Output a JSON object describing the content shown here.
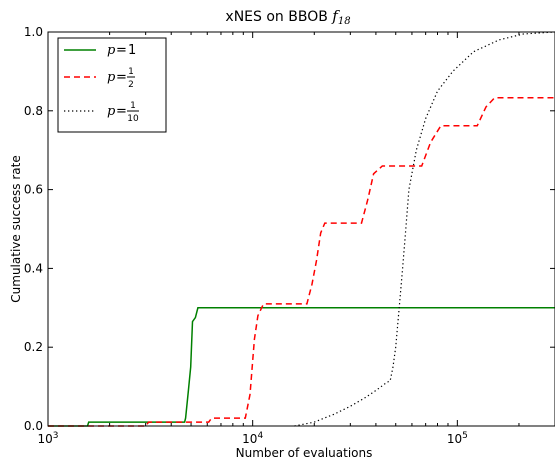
{
  "chart_data": {
    "type": "line",
    "title": "xNES on BBOB",
    "title_math": "f",
    "title_math_sub": "18",
    "xlabel": "Number of evaluations",
    "ylabel": "Cumulative success rate",
    "xscale": "log",
    "xlim": [
      1000,
      300000
    ],
    "ylim": [
      0,
      1.0
    ],
    "x_ticks": [
      {
        "value": 1000,
        "base": "10",
        "exp": "3"
      },
      {
        "value": 10000,
        "base": "10",
        "exp": "4"
      },
      {
        "value": 100000,
        "base": "10",
        "exp": "5"
      }
    ],
    "y_ticks": [
      {
        "value": 0.0,
        "label": "0.0"
      },
      {
        "value": 0.2,
        "label": "0.2"
      },
      {
        "value": 0.4,
        "label": "0.4"
      },
      {
        "value": 0.6,
        "label": "0.6"
      },
      {
        "value": 0.8,
        "label": "0.8"
      },
      {
        "value": 1.0,
        "label": "1.0"
      }
    ],
    "legend_position": "top-left",
    "series": [
      {
        "name": "p = 1",
        "legend": {
          "var": "p",
          "eq": "=",
          "whole": "1"
        },
        "color": "#008000",
        "dash": "solid",
        "points": [
          [
            1000,
            0
          ],
          [
            1560,
            0
          ],
          [
            1580,
            0.01
          ],
          [
            4650,
            0.01
          ],
          [
            4700,
            0.02
          ],
          [
            4850,
            0.09
          ],
          [
            4980,
            0.15
          ],
          [
            5080,
            0.265
          ],
          [
            5250,
            0.275
          ],
          [
            5400,
            0.3
          ],
          [
            300000,
            0.3
          ]
        ]
      },
      {
        "name": "p = 1/2",
        "legend": {
          "var": "p",
          "eq": "=",
          "num": "1",
          "den": "2"
        },
        "color": "#ff0000",
        "dash": "dashed",
        "points": [
          [
            1000,
            0
          ],
          [
            3000,
            0
          ],
          [
            3100,
            0.01
          ],
          [
            6100,
            0.01
          ],
          [
            6300,
            0.02
          ],
          [
            9200,
            0.02
          ],
          [
            9700,
            0.08
          ],
          [
            10200,
            0.22
          ],
          [
            10600,
            0.28
          ],
          [
            11300,
            0.31
          ],
          [
            18400,
            0.31
          ],
          [
            19500,
            0.36
          ],
          [
            20500,
            0.42
          ],
          [
            21500,
            0.49
          ],
          [
            22500,
            0.515
          ],
          [
            34000,
            0.515
          ],
          [
            36500,
            0.575
          ],
          [
            39000,
            0.64
          ],
          [
            43000,
            0.66
          ],
          [
            67000,
            0.66
          ],
          [
            74000,
            0.72
          ],
          [
            83000,
            0.762
          ],
          [
            125000,
            0.762
          ],
          [
            138000,
            0.81
          ],
          [
            152000,
            0.833
          ],
          [
            300000,
            0.833
          ]
        ]
      },
      {
        "name": "p = 1/10",
        "legend": {
          "var": "p",
          "eq": "=",
          "num": "1",
          "den": "10"
        },
        "color": "#000000",
        "dash": "dotted",
        "points": [
          [
            16000,
            0
          ],
          [
            20000,
            0.01
          ],
          [
            25000,
            0.03
          ],
          [
            30000,
            0.05
          ],
          [
            35000,
            0.07
          ],
          [
            40000,
            0.09
          ],
          [
            45000,
            0.11
          ],
          [
            47000,
            0.115
          ],
          [
            48500,
            0.15
          ],
          [
            50000,
            0.2
          ],
          [
            52000,
            0.3
          ],
          [
            54000,
            0.4
          ],
          [
            56000,
            0.5
          ],
          [
            58000,
            0.6
          ],
          [
            63000,
            0.7
          ],
          [
            70000,
            0.78
          ],
          [
            80000,
            0.85
          ],
          [
            95000,
            0.9
          ],
          [
            120000,
            0.95
          ],
          [
            160000,
            0.98
          ],
          [
            210000,
            0.995
          ],
          [
            300000,
            1.0
          ]
        ]
      }
    ]
  }
}
